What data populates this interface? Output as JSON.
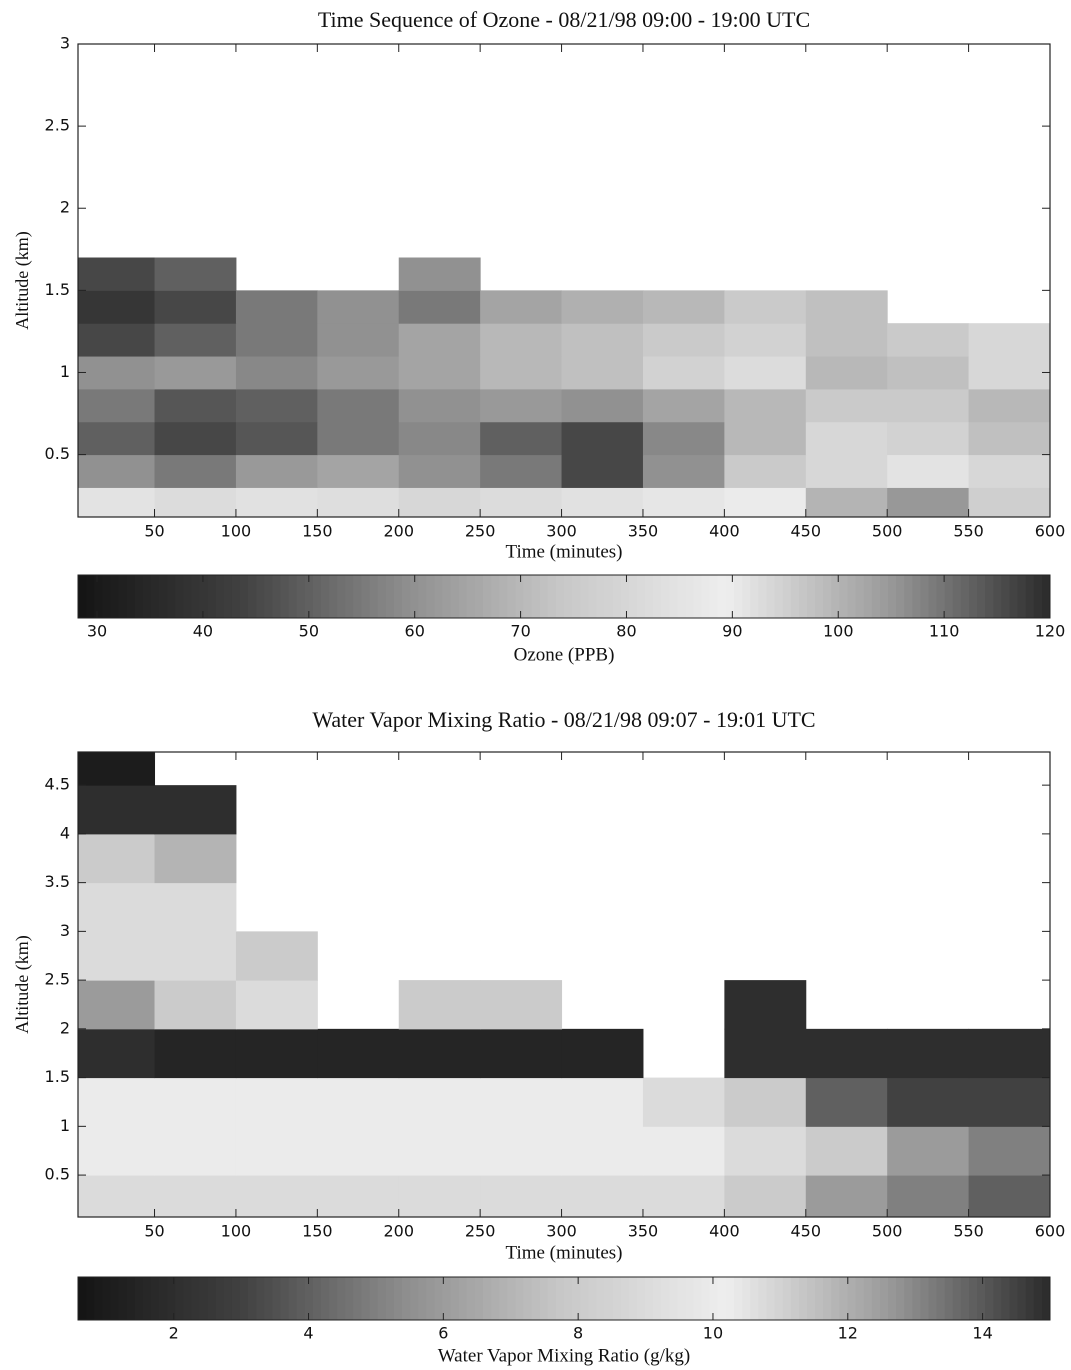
{
  "chart_data": [
    {
      "type": "heatmap",
      "title": "Time Sequence of Ozone - 08/21/98  09:00 - 19:00 UTC",
      "xlabel": "Time (minutes)",
      "ylabel": "Altitude (km)",
      "x": [
        25,
        75,
        125,
        175,
        225,
        275,
        325,
        375,
        425,
        475,
        525,
        575
      ],
      "y": [
        0.2,
        0.4,
        0.6,
        0.8,
        1.0,
        1.2,
        1.4,
        1.6
      ],
      "z": [
        [
          85,
          82,
          84,
          83,
          80,
          82,
          84,
          86,
          88,
          100,
          105,
          95
        ],
        [
          60,
          55,
          62,
          65,
          60,
          55,
          45,
          60,
          75,
          80,
          85,
          80
        ],
        [
          50,
          45,
          48,
          55,
          58,
          50,
          45,
          58,
          70,
          80,
          78,
          72
        ],
        [
          55,
          48,
          50,
          55,
          60,
          62,
          60,
          65,
          70,
          75,
          75,
          70
        ],
        [
          60,
          62,
          58,
          62,
          65,
          70,
          72,
          78,
          82,
          70,
          72,
          80
        ],
        [
          45,
          50,
          55,
          60,
          65,
          70,
          72,
          75,
          78,
          72,
          75,
          80
        ],
        [
          40,
          45,
          55,
          60,
          55,
          65,
          68,
          70,
          75,
          72,
          null,
          null
        ],
        [
          45,
          50,
          null,
          null,
          60,
          null,
          null,
          null,
          null,
          null,
          null,
          null
        ]
      ],
      "xlim": [
        3,
        600
      ],
      "ylim": [
        0.12,
        3
      ],
      "xticks": [
        50,
        100,
        150,
        200,
        250,
        300,
        350,
        400,
        450,
        500,
        550,
        600
      ],
      "yticks": [
        0.5,
        1,
        1.5,
        2,
        2.5,
        3
      ],
      "colormap": [
        "#141414",
        "#404040",
        "#8c8c8c",
        "#c8c8c8",
        "#eeeeee",
        "#9a9a9a",
        "#2a2a2a"
      ],
      "colorbar": {
        "label": "Ozone (PPB)",
        "lim": [
          28.2,
          120
        ],
        "ticks": [
          30,
          40,
          50,
          60,
          70,
          80,
          90,
          100,
          110,
          120
        ]
      }
    },
    {
      "type": "heatmap",
      "title": "Water Vapor Mixing Ratio - 08/21/98  09:07 - 19:01 UTC",
      "xlabel": "Time (minutes)",
      "ylabel": "Altitude (km)",
      "x": [
        25,
        75,
        125,
        175,
        225,
        275,
        325,
        375,
        425,
        475,
        525,
        575
      ],
      "y": [
        0.25,
        0.75,
        1.25,
        1.75,
        2.25,
        2.75,
        3.25,
        3.75,
        4.25,
        4.75
      ],
      "z": [
        [
          9,
          9,
          9,
          9,
          9,
          9,
          9,
          9,
          8,
          6,
          5,
          4
        ],
        [
          10,
          10,
          10,
          10,
          10,
          10,
          10,
          10,
          9,
          8,
          6,
          5
        ],
        [
          10,
          10,
          10,
          10,
          10,
          10,
          10,
          9,
          8,
          4,
          3,
          3
        ],
        [
          2,
          1.5,
          1.5,
          1.5,
          1.5,
          1.5,
          1.5,
          null,
          2,
          2,
          2,
          2
        ],
        [
          6,
          8,
          9,
          null,
          8,
          8,
          null,
          null,
          2,
          null,
          null,
          null
        ],
        [
          9,
          9,
          8,
          null,
          null,
          null,
          null,
          null,
          null,
          null,
          null,
          null
        ],
        [
          9,
          9,
          null,
          null,
          null,
          null,
          null,
          null,
          null,
          null,
          null,
          null
        ],
        [
          8,
          7,
          null,
          null,
          null,
          null,
          null,
          null,
          null,
          null,
          null,
          null
        ],
        [
          2,
          2,
          null,
          null,
          null,
          null,
          null,
          null,
          null,
          null,
          null,
          null
        ],
        [
          1,
          null,
          null,
          null,
          null,
          null,
          null,
          null,
          null,
          null,
          null,
          null
        ]
      ],
      "xlim": [
        3,
        600
      ],
      "ylim": [
        0.07,
        4.84
      ],
      "xticks": [
        50,
        100,
        150,
        200,
        250,
        300,
        350,
        400,
        450,
        500,
        550,
        600
      ],
      "yticks": [
        0.5,
        1,
        1.5,
        2,
        2.5,
        3,
        3.5,
        4,
        4.5
      ],
      "colormap": [
        "#141414",
        "#404040",
        "#8c8c8c",
        "#c8c8c8",
        "#eeeeee",
        "#9a9a9a",
        "#2a2a2a"
      ],
      "colorbar": {
        "label": "Water Vapor Mixing Ratio (g/kg)",
        "lim": [
          0.58,
          15
        ],
        "ticks": [
          2,
          4,
          6,
          8,
          10,
          12,
          14
        ]
      }
    }
  ]
}
